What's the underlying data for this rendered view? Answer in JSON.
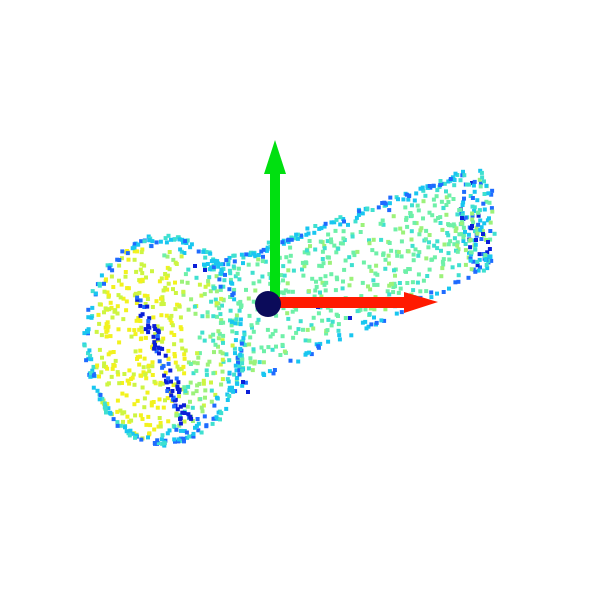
{
  "view": {
    "background": "#ffffff",
    "kind": "3d-point-cloud-viewer"
  },
  "cloud": {
    "palette": {
      "deep_blue": "#0b1fd8",
      "mid_blue": "#1f6bff",
      "cyan": "#19c6f0",
      "aqua": "#3fe0d0",
      "mint": "#6ef0a8",
      "light_green": "#9cf27a",
      "lime": "#cdf542",
      "yellow": "#f2f21e"
    },
    "shape": "bolt"
  },
  "axes": {
    "x": {
      "color": "#ff1a00",
      "icon": "x-axis-arrow-icon"
    },
    "y": {
      "color": "#00e010",
      "icon": "y-axis-arrow-icon"
    },
    "origin": {
      "color": "#0b0b5a",
      "icon": "origin-sphere-icon"
    }
  }
}
